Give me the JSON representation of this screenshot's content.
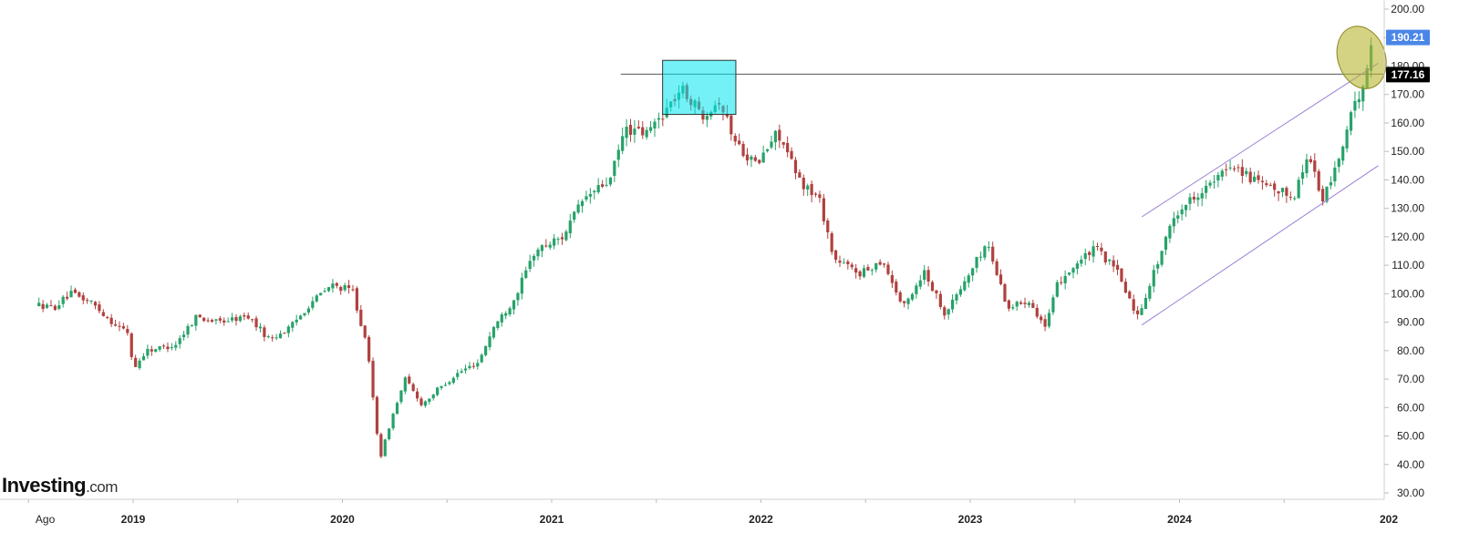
{
  "chart_data": {
    "type": "candlestick",
    "timeframe": "weekly",
    "title": "",
    "xlabel": "",
    "ylabel": "",
    "ylim": [
      30,
      200
    ],
    "y_ticks": [
      "30.00",
      "40.00",
      "50.00",
      "60.00",
      "70.00",
      "80.00",
      "90.00",
      "100.00",
      "110.00",
      "120.00",
      "130.00",
      "140.00",
      "150.00",
      "160.00",
      "170.00",
      "180.00",
      "190.00",
      "200.00"
    ],
    "x_ticks": [
      {
        "label": "Ago",
        "year": false
      },
      {
        "label": "2019",
        "year": true
      },
      {
        "label": "2020",
        "year": true
      },
      {
        "label": "2021",
        "year": true
      },
      {
        "label": "2022",
        "year": true
      },
      {
        "label": "2023",
        "year": true
      },
      {
        "label": "2024",
        "year": true
      },
      {
        "label": "202",
        "year": true
      }
    ],
    "grid": false,
    "up_color": "#26a269",
    "down_color": "#b0413e",
    "path": [
      [
        2018.55,
        96
      ],
      [
        2018.62,
        95
      ],
      [
        2018.7,
        100
      ],
      [
        2018.8,
        97
      ],
      [
        2018.9,
        90
      ],
      [
        2018.98,
        86
      ],
      [
        2019.0,
        73
      ],
      [
        2019.06,
        80
      ],
      [
        2019.2,
        82
      ],
      [
        2019.3,
        92
      ],
      [
        2019.4,
        90
      ],
      [
        2019.55,
        92
      ],
      [
        2019.65,
        84
      ],
      [
        2019.75,
        88
      ],
      [
        2019.85,
        97
      ],
      [
        2019.95,
        103
      ],
      [
        2020.05,
        101
      ],
      [
        2020.12,
        80
      ],
      [
        2020.18,
        42
      ],
      [
        2020.23,
        55
      ],
      [
        2020.3,
        70
      ],
      [
        2020.38,
        61
      ],
      [
        2020.45,
        66
      ],
      [
        2020.55,
        72
      ],
      [
        2020.65,
        76
      ],
      [
        2020.72,
        88
      ],
      [
        2020.82,
        98
      ],
      [
        2020.92,
        115
      ],
      [
        2021.05,
        120
      ],
      [
        2021.15,
        133
      ],
      [
        2021.28,
        140
      ],
      [
        2021.35,
        158
      ],
      [
        2021.45,
        156
      ],
      [
        2021.55,
        165
      ],
      [
        2021.62,
        172
      ],
      [
        2021.72,
        163
      ],
      [
        2021.8,
        168
      ],
      [
        2021.88,
        153
      ],
      [
        2021.98,
        145
      ],
      [
        2022.08,
        157
      ],
      [
        2022.18,
        140
      ],
      [
        2022.28,
        133
      ],
      [
        2022.35,
        112
      ],
      [
        2022.48,
        107
      ],
      [
        2022.58,
        112
      ],
      [
        2022.68,
        95
      ],
      [
        2022.78,
        108
      ],
      [
        2022.88,
        93
      ],
      [
        2022.98,
        105
      ],
      [
        2023.08,
        118
      ],
      [
        2023.18,
        95
      ],
      [
        2023.28,
        98
      ],
      [
        2023.36,
        88
      ],
      [
        2023.42,
        104
      ],
      [
        2023.5,
        110
      ],
      [
        2023.6,
        116
      ],
      [
        2023.7,
        108
      ],
      [
        2023.8,
        92
      ],
      [
        2023.88,
        108
      ],
      [
        2023.98,
        128
      ],
      [
        2024.08,
        135
      ],
      [
        2024.18,
        140
      ],
      [
        2024.25,
        146
      ],
      [
        2024.35,
        140
      ],
      [
        2024.45,
        136
      ],
      [
        2024.55,
        135
      ],
      [
        2024.62,
        150
      ],
      [
        2024.68,
        132
      ],
      [
        2024.75,
        145
      ],
      [
        2024.82,
        162
      ],
      [
        2024.88,
        175
      ],
      [
        2024.93,
        190
      ]
    ],
    "last_price": "190.21",
    "last_price_color": "#4a86e8",
    "resistance_level": 177.16,
    "resistance_label": "177.16",
    "resistance_label_color": "#000000",
    "annotations": {
      "resistance_line": {
        "x_start": 2021.33,
        "y": 177.16,
        "color": "#555555"
      },
      "highlight_box": {
        "x0": 2021.53,
        "x1": 2021.88,
        "y0": 163,
        "y1": 182,
        "fill": "#00e5ee",
        "stroke": "#333333"
      },
      "channel_upper": {
        "from": [
          2023.82,
          127
        ],
        "to": [
          2024.95,
          181
        ],
        "color": "#9b7fd4"
      },
      "channel_lower": {
        "from": [
          2023.82,
          89
        ],
        "to": [
          2024.95,
          145
        ],
        "color": "#9b7fd4"
      },
      "breakout_ellipse": {
        "cx": 2024.87,
        "cy": 183,
        "color": "#b8b430"
      }
    }
  },
  "watermark": {
    "brand": "Investing",
    "suffix": ".com"
  }
}
